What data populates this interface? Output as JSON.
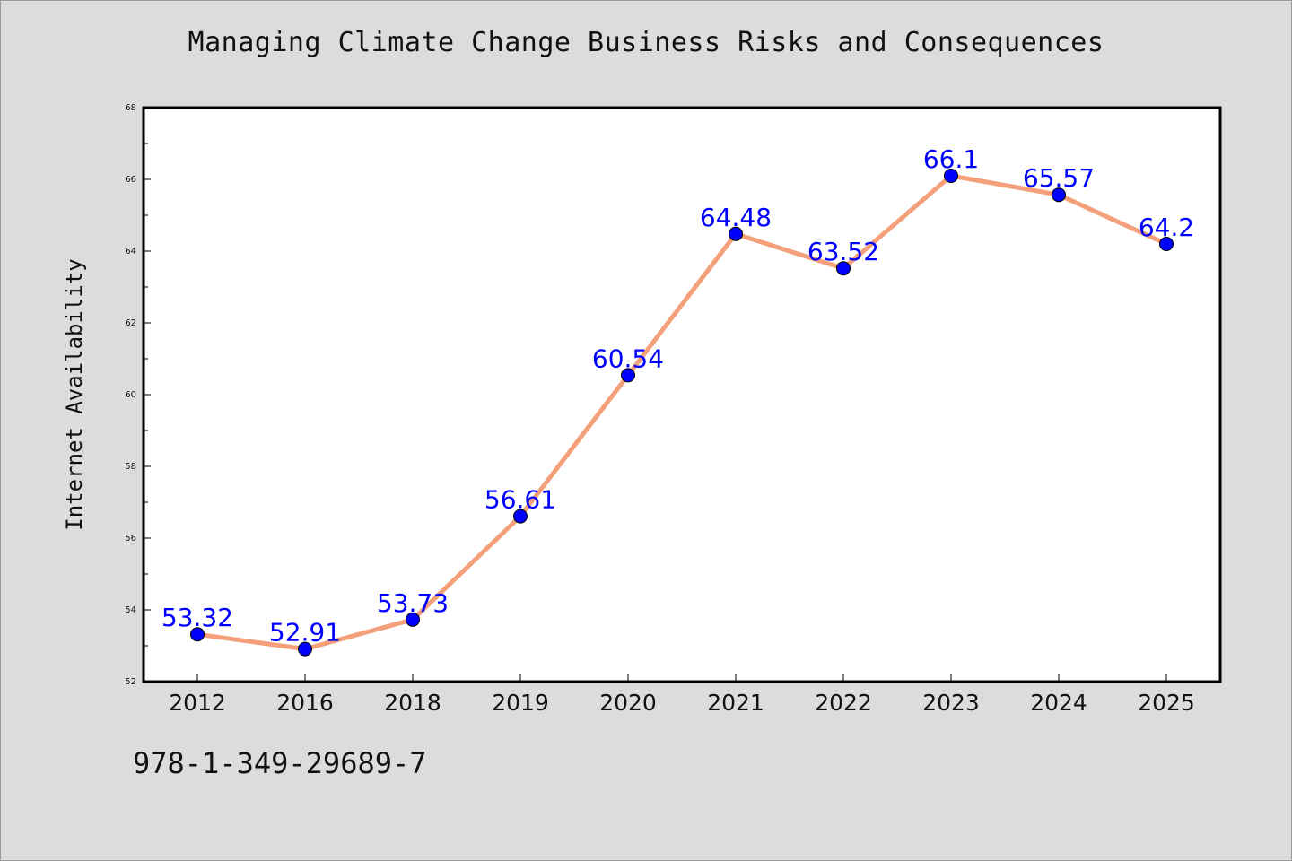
{
  "chart_data": {
    "type": "line",
    "title": "Managing Climate Change Business Risks and Consequences",
    "xlabel": "",
    "ylabel": "Internet Availability",
    "categories": [
      "2012",
      "2016",
      "2018",
      "2019",
      "2020",
      "2021",
      "2022",
      "2023",
      "2024",
      "2025"
    ],
    "values": [
      53.32,
      52.91,
      53.73,
      56.61,
      60.54,
      64.48,
      63.52,
      66.1,
      65.57,
      64.2
    ],
    "value_labels": [
      "53.32",
      "52.91",
      "53.73",
      "56.61",
      "60.54",
      "64.48",
      "63.52",
      "66.1",
      "65.57",
      "64.2"
    ],
    "ylim": [
      52,
      68
    ],
    "yticks": [
      52,
      54,
      56,
      58,
      60,
      62,
      64,
      66,
      68
    ],
    "grid": false,
    "line_color": "#f4a07a",
    "marker_color": "#0000ff",
    "label_color": "#0000ff"
  },
  "footer": {
    "code": "978-1-349-29689-7"
  }
}
